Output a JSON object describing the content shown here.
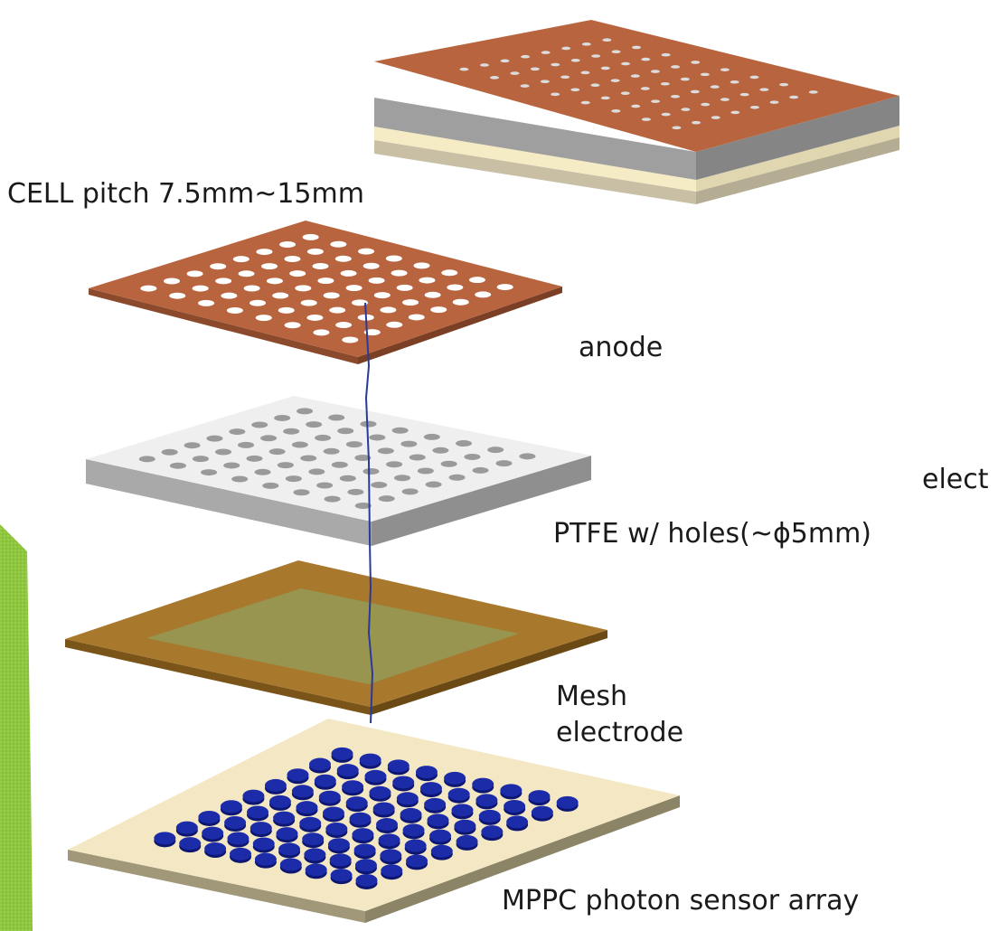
{
  "labels": {
    "cell_pitch": "CELL pitch 7.5mm~15mm",
    "anode": "anode",
    "elect": "elect",
    "ptfe": "PTFE w/ holes(~ϕ5mm)",
    "mesh": "Mesh",
    "mesh_electrode": "electrode",
    "mppc": "MPPC photon sensor array"
  },
  "colors": {
    "accent_green": "#8ec63f",
    "copper": "#b8643f",
    "ptfe": "#efefef",
    "mesh_frame": "#a8782c",
    "mesh_inner": "#97954f",
    "sensor_pad": "#1c2ca8",
    "sensor_base": "#f4e8c4"
  },
  "icons": [
    "green-accent-shape",
    "hole-grid",
    "sensor-pad-grid"
  ]
}
